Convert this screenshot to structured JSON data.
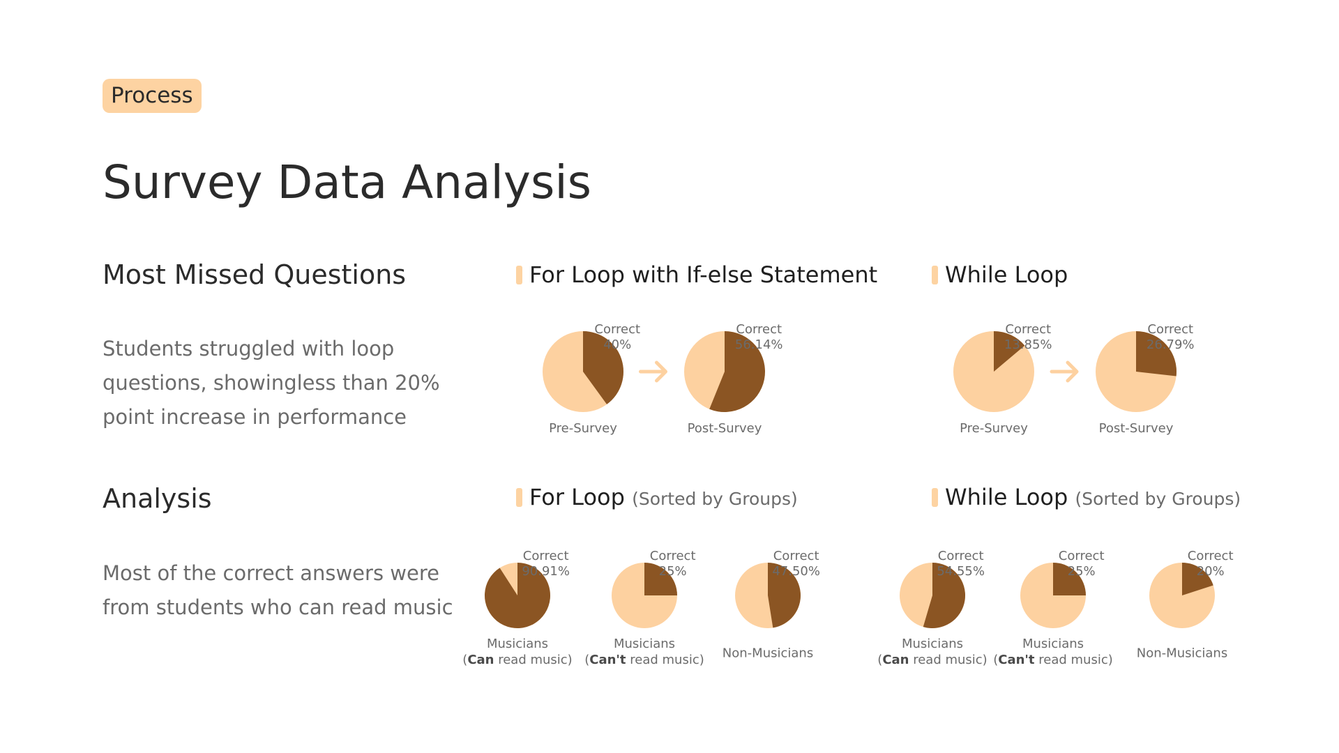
{
  "badge": "Process",
  "title": "Survey Data Analysis",
  "left": {
    "sections": [
      {
        "heading": "Most Missed Questions",
        "body": "Students struggled with loop questions, showingless than 20% point increase in performance"
      },
      {
        "heading": "Analysis",
        "body": "Most of the correct answers were from students who can read music"
      }
    ]
  },
  "colors": {
    "correct": "#8b5523",
    "remaining": "#fdd1a0",
    "arrow": "#fdd1a0",
    "accent_bar": "#fdd3a2"
  },
  "chart_data": [
    {
      "type": "pie",
      "title": "For Loop with If-else Statement",
      "subtitle": "",
      "slice_label": "Correct",
      "arrow_between": true,
      "pies": [
        {
          "value": 40,
          "value_label": "40%",
          "label": [
            "Pre-Survey"
          ]
        },
        {
          "value": 56.14,
          "value_label": "56.14%",
          "label": [
            "Post-Survey"
          ]
        }
      ]
    },
    {
      "type": "pie",
      "title": "While Loop",
      "subtitle": "",
      "slice_label": "Correct",
      "arrow_between": true,
      "pies": [
        {
          "value": 13.85,
          "value_label": "13.85%",
          "label": [
            "Pre-Survey"
          ]
        },
        {
          "value": 26.79,
          "value_label": "26.79%",
          "label": [
            "Post-Survey"
          ]
        }
      ]
    },
    {
      "type": "pie",
      "title": "For Loop",
      "subtitle": "(Sorted by Groups)",
      "slice_label": "Correct",
      "arrow_between": false,
      "pies": [
        {
          "value": 90.91,
          "value_label": "90.91%",
          "label": [
            "Musicians",
            "(Can read music)"
          ],
          "bold": "Can"
        },
        {
          "value": 25,
          "value_label": "25%",
          "label": [
            "Musicians",
            "(Can't read music)"
          ],
          "bold": "Can't"
        },
        {
          "value": 47.5,
          "value_label": "47.50%",
          "label": [
            "Non-Musicians"
          ]
        }
      ]
    },
    {
      "type": "pie",
      "title": "While Loop",
      "subtitle": "(Sorted by Groups)",
      "slice_label": "Correct",
      "arrow_between": false,
      "pies": [
        {
          "value": 54.55,
          "value_label": "54.55%",
          "label": [
            "Musicians",
            "(Can read music)"
          ],
          "bold": "Can"
        },
        {
          "value": 25,
          "value_label": "25%",
          "label": [
            "Musicians",
            "(Can't read music)"
          ],
          "bold": "Can't"
        },
        {
          "value": 20,
          "value_label": "20%",
          "label": [
            "Non-Musicians"
          ]
        }
      ]
    }
  ]
}
